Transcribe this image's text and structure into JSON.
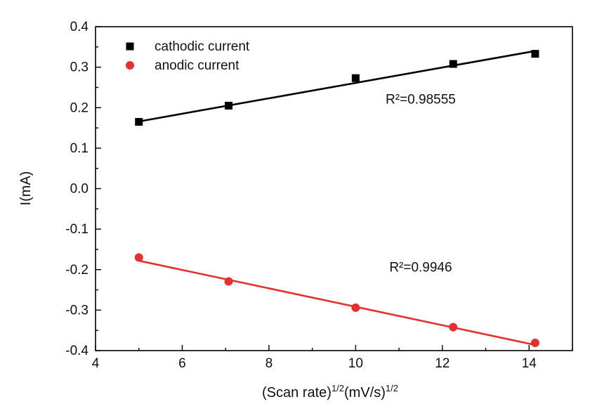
{
  "chart_data": {
    "type": "scatter",
    "title": "",
    "xlabel": {
      "main": "(Scan rate)",
      "sup1": "1/2",
      "unit": "(mV/s)",
      "sup2": "1/2"
    },
    "ylabel": "I(mA)",
    "xlim": [
      4,
      15
    ],
    "ylim": [
      -0.4,
      0.4
    ],
    "x_ticks": [
      "4",
      "6",
      "8",
      "10",
      "12",
      "14"
    ],
    "y_ticks": [
      "0.4",
      "0.3",
      "0.2",
      "0.1",
      "0.0",
      "-0.1",
      "-0.2",
      "-0.3",
      "-0.4"
    ],
    "grid": false,
    "legend_position": "top-left",
    "series": [
      {
        "name": "cathodic current",
        "marker": "square",
        "color": "#000000",
        "x": [
          5,
          7.07,
          10,
          12.25,
          14.14
        ],
        "y": [
          0.165,
          0.205,
          0.273,
          0.308,
          0.333
        ],
        "fit": {
          "x": [
            5,
            14.14
          ],
          "y": [
            0.166,
            0.34
          ]
        }
      },
      {
        "name": "anodic current",
        "marker": "circle",
        "color": "#e53030",
        "x": [
          5,
          7.07,
          10,
          12.25,
          14.14
        ],
        "y": [
          -0.17,
          -0.229,
          -0.294,
          -0.342,
          -0.381
        ],
        "fit": {
          "x": [
            5,
            14.14
          ],
          "y": [
            -0.178,
            -0.386
          ]
        }
      }
    ],
    "annotations": [
      {
        "text": "R²=0.98555",
        "x": 11.5,
        "y": 0.21
      },
      {
        "text": "R²=0.9946",
        "x": 11.5,
        "y": -0.205
      }
    ]
  }
}
